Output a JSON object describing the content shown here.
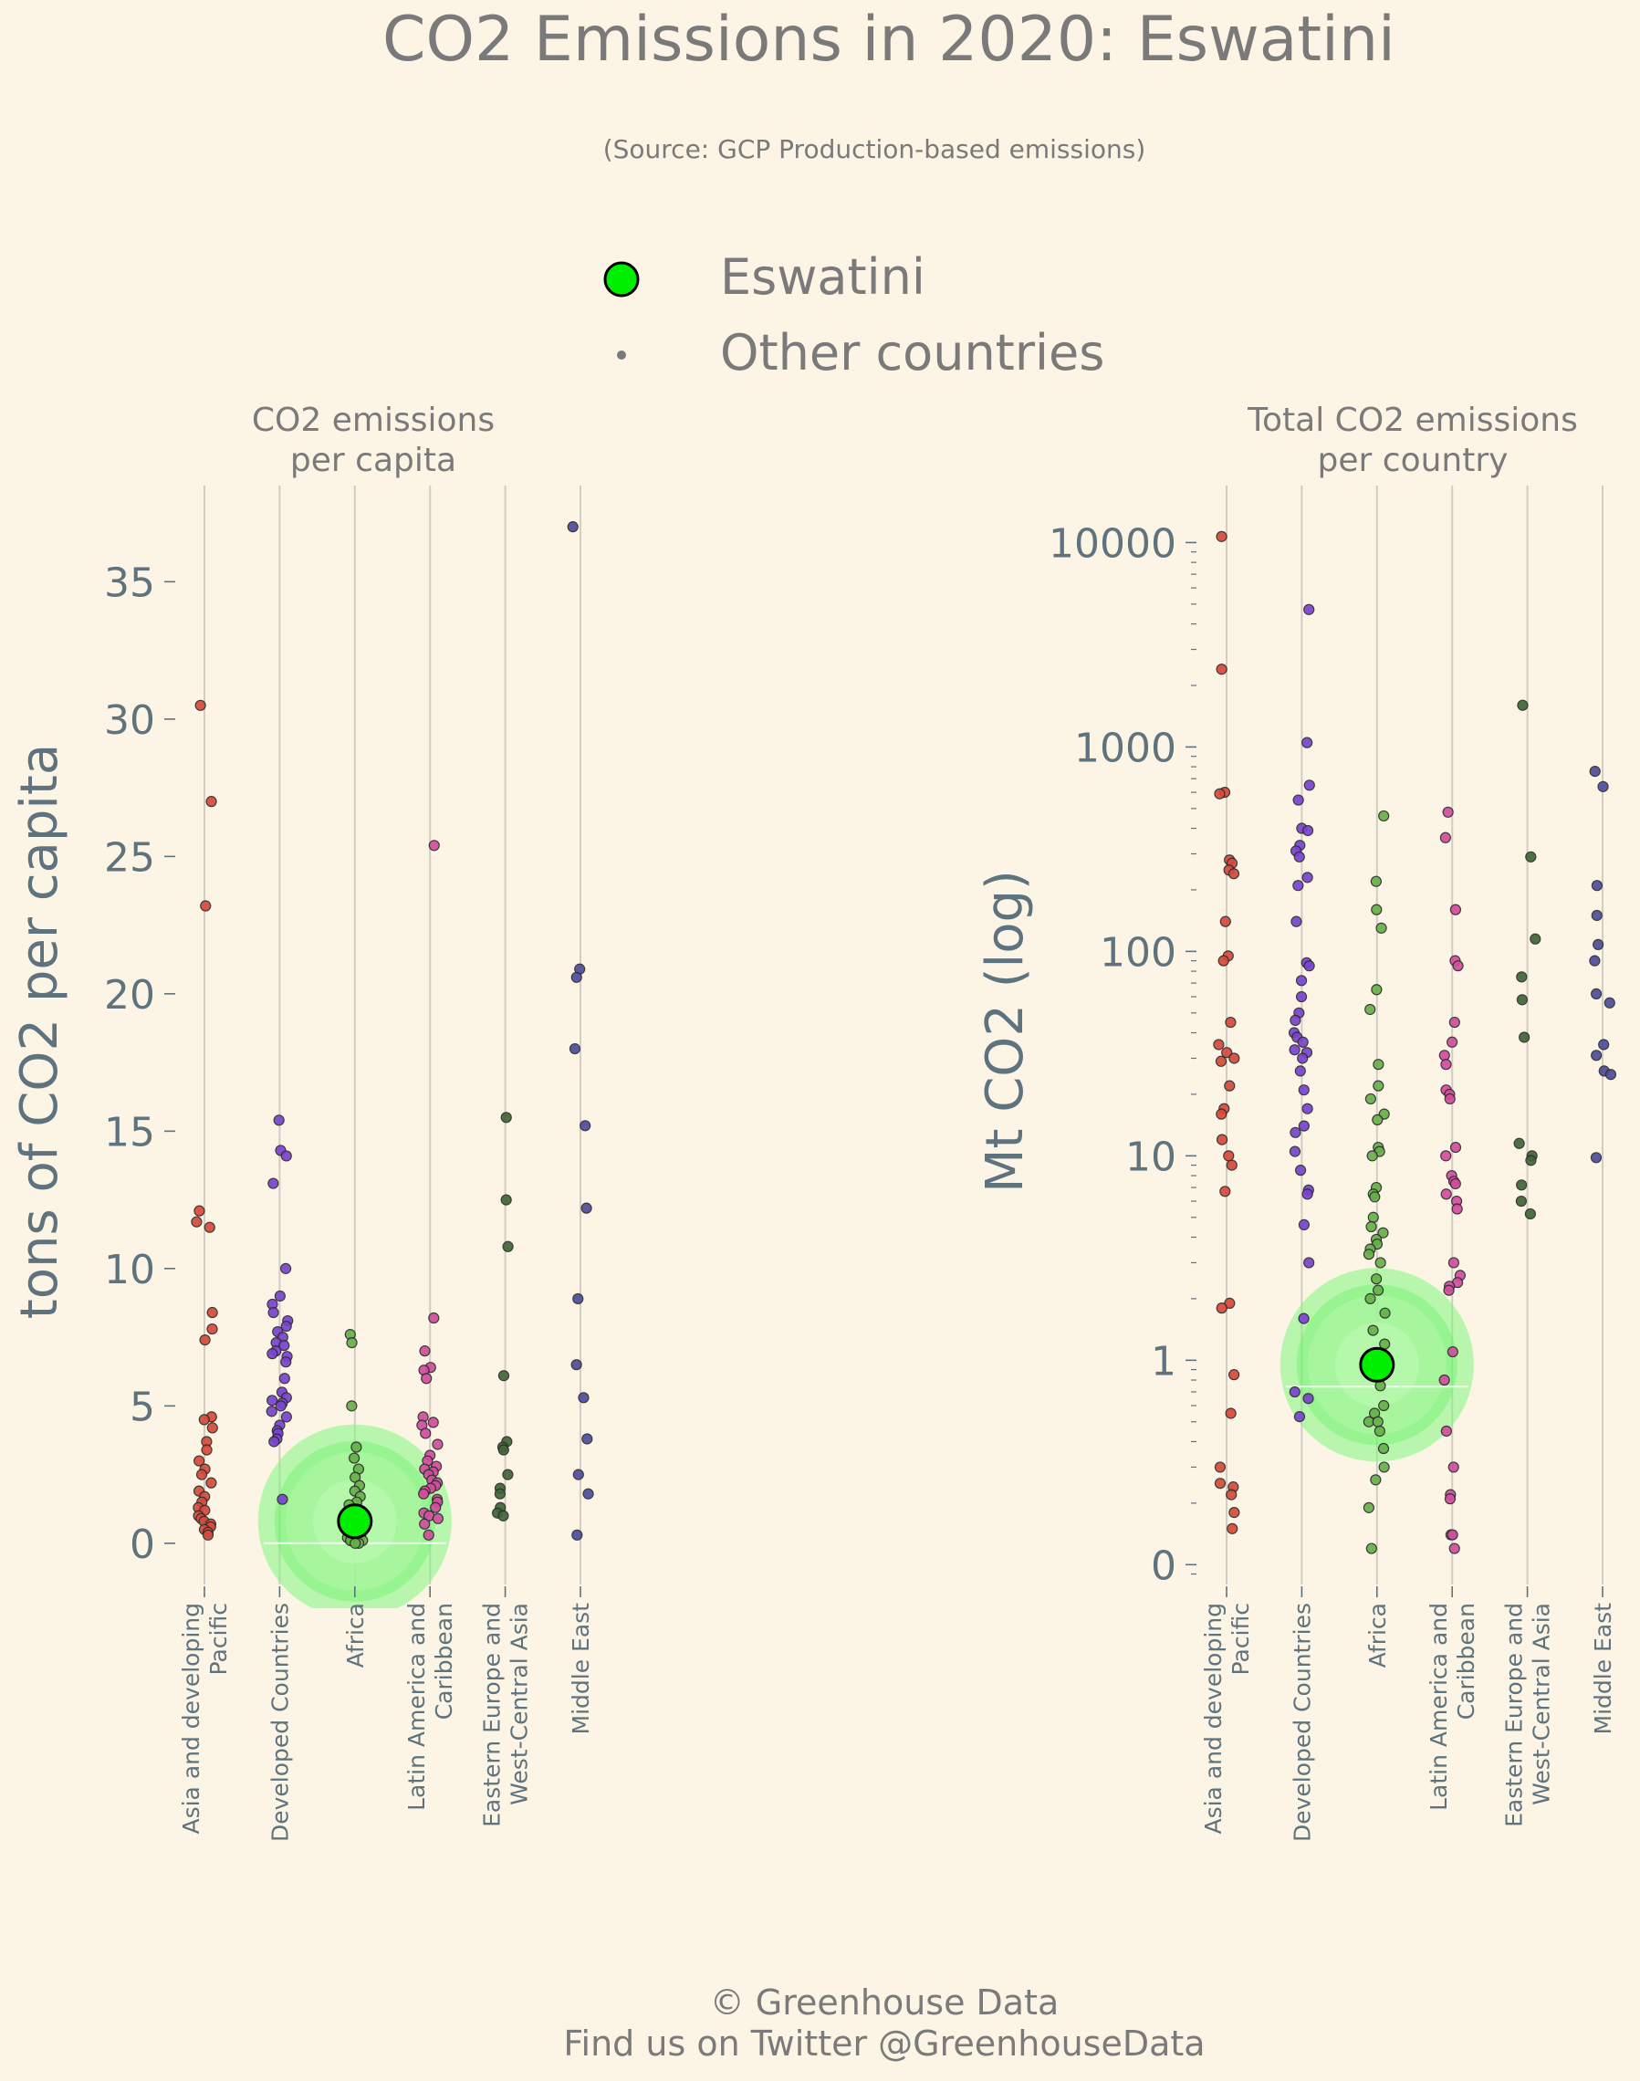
{
  "title": "CO2 Emissions in 2020: Eswatini",
  "subtitle": "(Source: GCP Production-based emissions)",
  "legend": {
    "highlight": "Eswatini",
    "others": "Other countries"
  },
  "footer": {
    "line1": "© Greenhouse Data",
    "line2": "Find us on Twitter @GreenhouseData"
  },
  "colors": {
    "background": "#fcf5e5",
    "highlight": "#00ee00",
    "glow": "#7df57d",
    "text": "#7a7a7a",
    "axis": "#5f737e",
    "Asia and developing Pacific": "#d64a3a",
    "Developed Countries": "#7a43d1",
    "Africa": "#66b048",
    "Latin America and Caribbean": "#d14d9e",
    "Eastern Europe and West-Central Asia": "#3f6638",
    "Middle East": "#4e4c9b"
  },
  "chart_data": [
    {
      "type": "scatter",
      "title": "CO2 emissions\nper capita",
      "ylabel": "tons of CO2 per capita",
      "ylim": [
        -1.5,
        38.5
      ],
      "yticks": [
        0,
        5,
        10,
        15,
        20,
        25,
        30,
        35
      ],
      "categories": [
        "Asia and developing\nPacific",
        "Developed Countries",
        "Africa",
        "Latin America and\nCaribbean",
        "Eastern Europe and\nWest-Central Asia",
        "Middle East"
      ],
      "highlight": {
        "name": "Eswatini",
        "category": "Africa",
        "value": 0.8
      },
      "series": [
        {
          "category": "Asia and developing\nPacific",
          "values": [
            30.5,
            27.0,
            23.2,
            12.1,
            11.7,
            11.5,
            8.4,
            7.8,
            7.4,
            4.6,
            4.5,
            4.2,
            3.7,
            3.4,
            3.0,
            2.7,
            2.5,
            2.2,
            1.9,
            1.7,
            1.5,
            1.3,
            1.2,
            1.0,
            0.9,
            0.8,
            0.7,
            0.6,
            0.5,
            0.4,
            0.3
          ]
        },
        {
          "category": "Developed Countries",
          "values": [
            15.4,
            14.3,
            14.1,
            13.1,
            10.0,
            9.0,
            8.7,
            8.4,
            8.1,
            7.9,
            7.7,
            7.5,
            7.3,
            7.2,
            7.0,
            6.9,
            6.8,
            6.6,
            6.0,
            5.5,
            5.3,
            5.2,
            5.1,
            5.0,
            4.8,
            4.6,
            4.3,
            4.1,
            4.0,
            3.8,
            3.7,
            1.6
          ]
        },
        {
          "category": "Africa",
          "values": [
            7.6,
            7.3,
            5.0,
            3.5,
            3.1,
            2.7,
            2.4,
            2.1,
            1.9,
            1.7,
            1.5,
            1.4,
            1.2,
            1.0,
            0.9,
            0.8,
            0.7,
            0.6,
            0.5,
            0.4,
            0.3,
            0.3,
            0.2,
            0.2,
            0.1,
            0.1,
            0.1,
            0.1,
            0.1,
            0.0,
            0.0
          ]
        },
        {
          "category": "Latin America and\nCaribbean",
          "values": [
            25.4,
            8.2,
            7.0,
            6.4,
            6.3,
            6.0,
            4.6,
            4.4,
            4.3,
            4.0,
            3.6,
            3.2,
            3.0,
            2.8,
            2.7,
            2.6,
            2.5,
            2.3,
            2.2,
            2.1,
            2.0,
            1.9,
            1.8,
            1.6,
            1.5,
            1.3,
            1.1,
            1.0,
            0.9,
            0.7,
            0.3
          ]
        },
        {
          "category": "Eastern Europe and\nWest-Central Asia",
          "values": [
            15.5,
            12.5,
            10.8,
            6.1,
            3.7,
            3.5,
            3.4,
            2.5,
            2.0,
            1.8,
            1.3,
            1.1,
            1.0
          ]
        },
        {
          "category": "Middle East",
          "values": [
            37.0,
            20.9,
            20.6,
            18.0,
            15.2,
            12.2,
            8.9,
            6.5,
            5.3,
            3.8,
            2.5,
            1.8,
            0.3
          ]
        }
      ]
    },
    {
      "type": "scatter",
      "title": "Total CO2 emissions\nper country",
      "ylabel": "Mt CO2 (log)",
      "scale": "log",
      "ylim": [
        0.08,
        19000
      ],
      "yticks": [
        0.1,
        1,
        10,
        100,
        1000,
        10000
      ],
      "ytick_labels": [
        "0",
        "1",
        "10",
        "100",
        "1000",
        "10000"
      ],
      "categories": [
        "Asia and developing\nPacific",
        "Developed Countries",
        "Africa",
        "Latin America and\nCaribbean",
        "Eastern Europe and\nWest-Central Asia",
        "Middle East"
      ],
      "highlight": {
        "name": "Eswatini",
        "category": "Africa",
        "value": 0.95
      },
      "series": [
        {
          "category": "Asia and developing\nPacific",
          "values": [
            10700,
            2400,
            600,
            590,
            280,
            270,
            250,
            240,
            140,
            95,
            90,
            45,
            35,
            32,
            30,
            29,
            22,
            17,
            16,
            12,
            10,
            9,
            6.7,
            1.9,
            1.8,
            0.85,
            0.55,
            0.3,
            0.25,
            0.24,
            0.22,
            0.18,
            0.15
          ]
        },
        {
          "category": "Developed Countries",
          "values": [
            4700,
            1050,
            650,
            550,
            400,
            390,
            330,
            310,
            290,
            230,
            210,
            140,
            88,
            85,
            72,
            60,
            50,
            46,
            40,
            38,
            36,
            33,
            32,
            30,
            26,
            21,
            17,
            14,
            13,
            10.5,
            8.5,
            6.8,
            6.5,
            4.6,
            3.0,
            1.6,
            0.7,
            0.65,
            0.53
          ]
        },
        {
          "category": "Africa",
          "values": [
            460,
            220,
            160,
            130,
            65,
            52,
            28,
            22,
            19,
            16,
            15,
            11,
            10.5,
            10,
            7,
            6.5,
            6.3,
            5,
            4.5,
            4.2,
            3.9,
            3.7,
            3.5,
            3.3,
            3.0,
            2.5,
            2.2,
            2.0,
            1.7,
            1.4,
            1.2,
            1.0,
            0.75,
            0.6,
            0.55,
            0.5,
            0.5,
            0.45,
            0.37,
            0.3,
            0.26,
            0.19,
            0.12
          ]
        },
        {
          "category": "Latin America and\nCaribbean",
          "values": [
            480,
            360,
            160,
            90,
            85,
            45,
            36,
            31,
            28,
            21,
            20,
            19,
            11,
            10,
            8,
            7.5,
            7.3,
            6.5,
            6.0,
            5.5,
            3.0,
            2.6,
            2.4,
            2.3,
            2.2,
            1.1,
            0.8,
            0.45,
            0.3,
            0.22,
            0.21,
            0.14,
            0.14,
            0.12
          ]
        },
        {
          "category": "Eastern Europe and\nWest-Central Asia",
          "values": [
            1600,
            290,
            115,
            75,
            58,
            38,
            11.5,
            10,
            9.5,
            7.2,
            6.0,
            5.2
          ]
        },
        {
          "category": "Middle East",
          "values": [
            760,
            640,
            210,
            150,
            108,
            90,
            62,
            56,
            35,
            31,
            26,
            25,
            9.8
          ]
        }
      ]
    }
  ]
}
